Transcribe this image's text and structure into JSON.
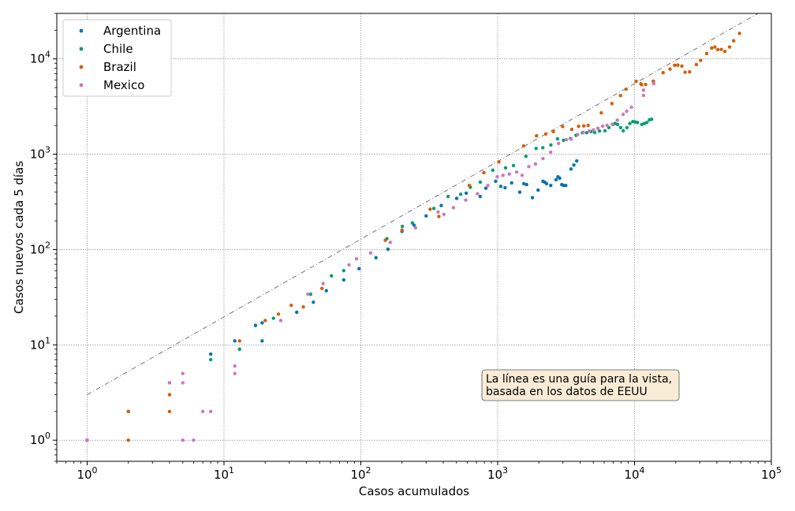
{
  "chart_data": {
    "type": "scatter",
    "xlabel": "Casos acumulados",
    "ylabel": "Casos nuevos cada 5 días",
    "xscale": "log",
    "yscale": "log",
    "xlim": [
      0.6,
      100000
    ],
    "ylim": [
      0.6,
      30000
    ],
    "grid": true,
    "legend_position": "top-left",
    "x_tick_labels": [
      {
        "value": 1,
        "base": "10",
        "exp": "0"
      },
      {
        "value": 10,
        "base": "10",
        "exp": "1"
      },
      {
        "value": 100,
        "base": "10",
        "exp": "2"
      },
      {
        "value": 1000,
        "base": "10",
        "exp": "3"
      },
      {
        "value": 10000,
        "base": "10",
        "exp": "4"
      },
      {
        "value": 100000,
        "base": "10",
        "exp": "5"
      }
    ],
    "y_tick_labels": [
      {
        "value": 1,
        "base": "10",
        "exp": "0"
      },
      {
        "value": 10,
        "base": "10",
        "exp": "1"
      },
      {
        "value": 100,
        "base": "10",
        "exp": "2"
      },
      {
        "value": 1000,
        "base": "10",
        "exp": "3"
      },
      {
        "value": 10000,
        "base": "10",
        "exp": "4"
      }
    ],
    "annotation": {
      "lines": [
        "La línea es una guía para la vista,",
        "basada en los datos de EEUU"
      ],
      "background": "#f9ecd6",
      "position": "lower-right"
    },
    "guide_line": {
      "points": [
        [
          1,
          3
        ],
        [
          80000,
          30000
        ]
      ],
      "style": "dash-dot",
      "color": "#555555"
    },
    "series": [
      {
        "name": "Argentina",
        "color": "#0173b2",
        "points": [
          [
            1,
            1
          ],
          [
            2,
            2
          ],
          [
            4,
            4
          ],
          [
            8,
            8
          ],
          [
            12,
            11
          ],
          [
            17,
            16
          ],
          [
            19,
            11
          ],
          [
            19,
            17
          ],
          [
            34,
            22
          ],
          [
            45,
            28
          ],
          [
            56,
            37
          ],
          [
            75,
            48
          ],
          [
            97,
            63
          ],
          [
            129,
            82
          ],
          [
            158,
            101
          ],
          [
            200,
            155
          ],
          [
            245,
            180
          ],
          [
            300,
            225
          ],
          [
            387,
            290
          ],
          [
            502,
            344
          ],
          [
            589,
            390
          ],
          [
            745,
            360
          ],
          [
            820,
            440
          ],
          [
            966,
            520
          ],
          [
            1054,
            460
          ],
          [
            1133,
            445
          ],
          [
            1265,
            500
          ],
          [
            1451,
            400
          ],
          [
            1554,
            490
          ],
          [
            1628,
            480
          ],
          [
            1795,
            350
          ],
          [
            1975,
            420
          ],
          [
            2142,
            520
          ],
          [
            2208,
            510
          ],
          [
            2277,
            490
          ],
          [
            2443,
            470
          ],
          [
            2669,
            540
          ],
          [
            2758,
            580
          ],
          [
            2839,
            560
          ],
          [
            2941,
            480
          ],
          [
            3031,
            470
          ],
          [
            3144,
            470
          ],
          [
            3435,
            700
          ],
          [
            3607,
            770
          ],
          [
            3780,
            850
          ]
        ]
      },
      {
        "name": "Chile",
        "color": "#029e73",
        "points": [
          [
            8,
            7
          ],
          [
            13,
            9
          ],
          [
            23,
            19
          ],
          [
            43,
            34
          ],
          [
            61,
            53
          ],
          [
            75,
            60
          ],
          [
            155,
            130
          ],
          [
            201,
            175
          ],
          [
            238,
            190
          ],
          [
            342,
            270
          ],
          [
            434,
            360
          ],
          [
            537,
            380
          ],
          [
            632,
            450
          ],
          [
            746,
            510
          ],
          [
            922,
            680
          ],
          [
            1142,
            720
          ],
          [
            1306,
            760
          ],
          [
            1610,
            950
          ],
          [
            1909,
            1150
          ],
          [
            2139,
            1170
          ],
          [
            2449,
            1250
          ],
          [
            2738,
            1450
          ],
          [
            3031,
            1400
          ],
          [
            3404,
            1460
          ],
          [
            3737,
            1580
          ],
          [
            4161,
            1680
          ],
          [
            4471,
            1680
          ],
          [
            4815,
            1730
          ],
          [
            5116,
            1690
          ],
          [
            5546,
            1750
          ],
          [
            6084,
            1760
          ],
          [
            6501,
            1900
          ],
          [
            6927,
            2050
          ],
          [
            7213,
            2100
          ],
          [
            7525,
            2050
          ],
          [
            7917,
            1900
          ],
          [
            8273,
            1760
          ],
          [
            8807,
            1900
          ],
          [
            9252,
            2100
          ],
          [
            9730,
            2200
          ],
          [
            10088,
            2180
          ],
          [
            10507,
            2150
          ],
          [
            11296,
            2050
          ],
          [
            11812,
            2100
          ],
          [
            12306,
            2150
          ],
          [
            12858,
            2290
          ],
          [
            13331,
            2330
          ]
        ]
      },
      {
        "name": "Brazil",
        "color": "#d55e00",
        "points": [
          [
            1,
            1
          ],
          [
            2,
            1
          ],
          [
            2,
            2
          ],
          [
            4,
            2
          ],
          [
            4,
            3
          ],
          [
            13,
            11
          ],
          [
            20,
            18
          ],
          [
            25,
            21
          ],
          [
            31,
            26
          ],
          [
            38,
            25
          ],
          [
            52,
            39
          ],
          [
            151,
            125
          ],
          [
            200,
            160
          ],
          [
            321,
            265
          ],
          [
            372,
            222
          ],
          [
            621,
            470
          ],
          [
            793,
            640
          ],
          [
            1021,
            830
          ],
          [
            1546,
            1220
          ],
          [
            1924,
            1560
          ],
          [
            2247,
            1630
          ],
          [
            2554,
            1730
          ],
          [
            2985,
            1950
          ],
          [
            3477,
            1820
          ],
          [
            3904,
            1960
          ],
          [
            4256,
            1980
          ],
          [
            4579,
            2010
          ],
          [
            5717,
            2720
          ],
          [
            6836,
            3400
          ],
          [
            7910,
            4120
          ],
          [
            8676,
            4810
          ],
          [
            10278,
            5820
          ],
          [
            11130,
            5480
          ],
          [
            11254,
            5360
          ],
          [
            12056,
            5380
          ],
          [
            13717,
            5840
          ],
          [
            16188,
            7160
          ],
          [
            18176,
            7800
          ],
          [
            19638,
            8580
          ],
          [
            20727,
            8600
          ],
          [
            22192,
            8400
          ],
          [
            23430,
            7250
          ],
          [
            25262,
            7300
          ],
          [
            28320,
            8730
          ],
          [
            30425,
            9640
          ],
          [
            33682,
            11380
          ],
          [
            36658,
            13000
          ],
          [
            38654,
            13340
          ],
          [
            40581,
            12500
          ],
          [
            43079,
            12570
          ],
          [
            45757,
            11970
          ],
          [
            49492,
            13340
          ],
          [
            52995,
            15490
          ],
          [
            58509,
            18520
          ]
        ]
      },
      {
        "name": "Mexico",
        "color": "#cc78bc",
        "points": [
          [
            1,
            1
          ],
          [
            4,
            4
          ],
          [
            5,
            1
          ],
          [
            5,
            4
          ],
          [
            5,
            5
          ],
          [
            6,
            1
          ],
          [
            7,
            2
          ],
          [
            8,
            2
          ],
          [
            12,
            5
          ],
          [
            12,
            6
          ],
          [
            26,
            18
          ],
          [
            41,
            34
          ],
          [
            53,
            44
          ],
          [
            82,
            69
          ],
          [
            93,
            80
          ],
          [
            118,
            92
          ],
          [
            164,
            119
          ],
          [
            251,
            169
          ],
          [
            367,
            248
          ],
          [
            405,
            234
          ],
          [
            475,
            275
          ],
          [
            585,
            330
          ],
          [
            712,
            385
          ],
          [
            848,
            470
          ],
          [
            993,
            580
          ],
          [
            1094,
            600
          ],
          [
            1215,
            620
          ],
          [
            1378,
            650
          ],
          [
            1510,
            600
          ],
          [
            1688,
            740
          ],
          [
            1890,
            790
          ],
          [
            2143,
            900
          ],
          [
            2439,
            1050
          ],
          [
            2785,
            1300
          ],
          [
            3181,
            1420
          ],
          [
            3441,
            1440
          ],
          [
            3844,
            1610
          ],
          [
            4219,
            1700
          ],
          [
            4661,
            1750
          ],
          [
            5014,
            1800
          ],
          [
            5399,
            1870
          ],
          [
            5847,
            1970
          ],
          [
            6297,
            2010
          ],
          [
            6875,
            2060
          ],
          [
            7497,
            2280
          ],
          [
            8261,
            2620
          ],
          [
            8772,
            2820
          ],
          [
            9501,
            3110
          ],
          [
            11633,
            4130
          ],
          [
            11633,
            4700
          ],
          [
            13842,
            5500
          ]
        ]
      }
    ]
  }
}
